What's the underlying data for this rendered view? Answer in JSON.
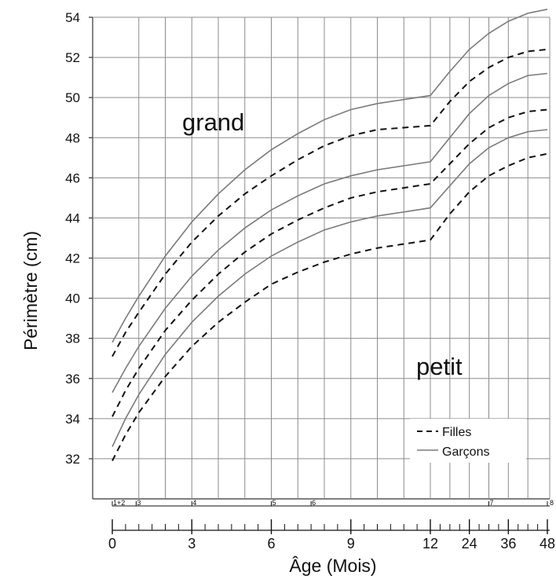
{
  "chart_data": {
    "type": "line",
    "ylabel": "Périmètre (cm)",
    "xlabel": "Âge (Mois)",
    "ylim": [
      30,
      54
    ],
    "y_ticks": [
      32,
      34,
      36,
      38,
      40,
      42,
      44,
      46,
      48,
      50,
      52,
      54
    ],
    "grid": true,
    "legend_position": "bottom-right",
    "legend": [
      {
        "label": "Filles",
        "style": "dashed"
      },
      {
        "label": "Garçons",
        "style": "solid"
      }
    ],
    "annotations": {
      "upper": "grand",
      "lower": "petit"
    },
    "colors": {
      "boys": "#7a7a7a",
      "girls": "#111111",
      "grid": "#8c8c8c"
    },
    "age_axis": {
      "x_ticks": [
        {
          "age": 0,
          "label": "0"
        },
        {
          "age": 3,
          "label": "3"
        },
        {
          "age": 6,
          "label": "6"
        },
        {
          "age": 9,
          "label": "9"
        },
        {
          "age": 12,
          "label": "12"
        },
        {
          "age": 24,
          "label": "24"
        },
        {
          "age": 36,
          "label": "36"
        },
        {
          "age": 48,
          "label": "48"
        }
      ],
      "visit_labels": [
        {
          "age": 0,
          "label": "1+2"
        },
        {
          "age": 0.9,
          "label": "3"
        },
        {
          "age": 3,
          "label": "4"
        },
        {
          "age": 6,
          "label": "5"
        },
        {
          "age": 7.5,
          "label": "6"
        },
        {
          "age": 30,
          "label": "7"
        },
        {
          "age": 48,
          "label": "8"
        }
      ]
    },
    "series": [
      {
        "name": "Garçons",
        "style": "solid",
        "points": [
          [
            0,
            37.8
          ],
          [
            0.5,
            39.0
          ],
          [
            1,
            40.1
          ],
          [
            2,
            42.1
          ],
          [
            3,
            43.8
          ],
          [
            4,
            45.2
          ],
          [
            5,
            46.4
          ],
          [
            6,
            47.4
          ],
          [
            7,
            48.2
          ],
          [
            8,
            48.9
          ],
          [
            9,
            49.4
          ],
          [
            10,
            49.7
          ],
          [
            11,
            49.9
          ],
          [
            12,
            50.1
          ],
          [
            18,
            51.3
          ],
          [
            24,
            52.4
          ],
          [
            30,
            53.2
          ],
          [
            36,
            53.8
          ],
          [
            42,
            54.2
          ],
          [
            48,
            54.4
          ]
        ]
      },
      {
        "name": "Filles",
        "style": "dashed",
        "points": [
          [
            0,
            37.1
          ],
          [
            0.5,
            38.3
          ],
          [
            1,
            39.3
          ],
          [
            2,
            41.2
          ],
          [
            3,
            42.8
          ],
          [
            4,
            44.1
          ],
          [
            5,
            45.2
          ],
          [
            6,
            46.1
          ],
          [
            7,
            46.9
          ],
          [
            8,
            47.6
          ],
          [
            9,
            48.1
          ],
          [
            10,
            48.4
          ],
          [
            11,
            48.5
          ],
          [
            12,
            48.6
          ],
          [
            18,
            49.8
          ],
          [
            24,
            50.8
          ],
          [
            30,
            51.5
          ],
          [
            36,
            52.0
          ],
          [
            42,
            52.3
          ],
          [
            48,
            52.4
          ]
        ]
      },
      {
        "name": "Garçons",
        "style": "solid",
        "points": [
          [
            0,
            35.3
          ],
          [
            0.5,
            36.5
          ],
          [
            1,
            37.6
          ],
          [
            2,
            39.5
          ],
          [
            3,
            41.1
          ],
          [
            4,
            42.4
          ],
          [
            5,
            43.5
          ],
          [
            6,
            44.4
          ],
          [
            7,
            45.1
          ],
          [
            8,
            45.7
          ],
          [
            9,
            46.1
          ],
          [
            10,
            46.4
          ],
          [
            11,
            46.6
          ],
          [
            12,
            46.8
          ],
          [
            18,
            48.0
          ],
          [
            24,
            49.2
          ],
          [
            30,
            50.1
          ],
          [
            36,
            50.7
          ],
          [
            42,
            51.1
          ],
          [
            48,
            51.2
          ]
        ]
      },
      {
        "name": "Filles",
        "style": "dashed",
        "points": [
          [
            0,
            34.1
          ],
          [
            0.5,
            35.4
          ],
          [
            1,
            36.5
          ],
          [
            2,
            38.4
          ],
          [
            3,
            39.9
          ],
          [
            4,
            41.2
          ],
          [
            5,
            42.3
          ],
          [
            6,
            43.2
          ],
          [
            7,
            43.9
          ],
          [
            8,
            44.5
          ],
          [
            9,
            45.0
          ],
          [
            10,
            45.3
          ],
          [
            11,
            45.5
          ],
          [
            12,
            45.7
          ],
          [
            18,
            46.7
          ],
          [
            24,
            47.7
          ],
          [
            30,
            48.5
          ],
          [
            36,
            49.0
          ],
          [
            42,
            49.3
          ],
          [
            48,
            49.4
          ]
        ]
      },
      {
        "name": "Garçons",
        "style": "solid",
        "points": [
          [
            0,
            32.6
          ],
          [
            0.5,
            34.0
          ],
          [
            1,
            35.2
          ],
          [
            2,
            37.2
          ],
          [
            3,
            38.8
          ],
          [
            4,
            40.1
          ],
          [
            5,
            41.2
          ],
          [
            6,
            42.1
          ],
          [
            7,
            42.8
          ],
          [
            8,
            43.4
          ],
          [
            9,
            43.8
          ],
          [
            10,
            44.1
          ],
          [
            11,
            44.3
          ],
          [
            12,
            44.5
          ],
          [
            18,
            45.6
          ],
          [
            24,
            46.7
          ],
          [
            30,
            47.5
          ],
          [
            36,
            48.0
          ],
          [
            42,
            48.3
          ],
          [
            48,
            48.4
          ]
        ]
      },
      {
        "name": "Filles",
        "style": "dashed",
        "points": [
          [
            0,
            31.9
          ],
          [
            0.5,
            33.2
          ],
          [
            1,
            34.3
          ],
          [
            2,
            36.1
          ],
          [
            3,
            37.6
          ],
          [
            4,
            38.8
          ],
          [
            5,
            39.8
          ],
          [
            6,
            40.7
          ],
          [
            7,
            41.3
          ],
          [
            8,
            41.8
          ],
          [
            9,
            42.2
          ],
          [
            10,
            42.5
          ],
          [
            11,
            42.7
          ],
          [
            12,
            42.9
          ],
          [
            18,
            44.2
          ],
          [
            24,
            45.3
          ],
          [
            30,
            46.1
          ],
          [
            36,
            46.6
          ],
          [
            42,
            47.0
          ],
          [
            48,
            47.2
          ]
        ]
      }
    ]
  }
}
